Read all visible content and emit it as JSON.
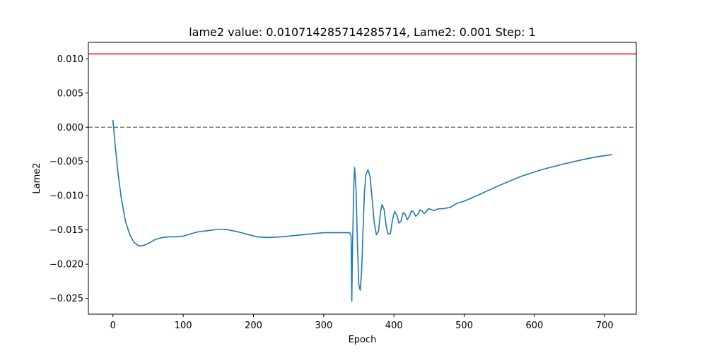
{
  "chart_data": {
    "type": "line",
    "title": "lame2 value: 0.010714285714285714, Lame2: 0.001 Step: 1",
    "xlabel": "Epoch",
    "ylabel": "Lame2",
    "xlim": [
      -35,
      745
    ],
    "ylim": [
      -0.0273,
      0.0124
    ],
    "xticks": [
      {
        "value": 0,
        "label": "0"
      },
      {
        "value": 100,
        "label": "100"
      },
      {
        "value": 200,
        "label": "200"
      },
      {
        "value": 300,
        "label": "300"
      },
      {
        "value": 400,
        "label": "400"
      },
      {
        "value": 500,
        "label": "500"
      },
      {
        "value": 600,
        "label": "600"
      },
      {
        "value": 700,
        "label": "700"
      }
    ],
    "yticks": [
      {
        "value": 0.01,
        "label": "0.010"
      },
      {
        "value": 0.005,
        "label": "0.005"
      },
      {
        "value": 0.0,
        "label": "0.000"
      },
      {
        "value": -0.005,
        "label": "−0.005"
      },
      {
        "value": -0.01,
        "label": "−0.010"
      },
      {
        "value": -0.015,
        "label": "−0.015"
      },
      {
        "value": -0.02,
        "label": "−0.020"
      },
      {
        "value": -0.025,
        "label": "−0.025"
      }
    ],
    "grid": false,
    "legend": "none",
    "reference_lines": [
      {
        "kind": "horizontal",
        "y": 0.010714285714285714,
        "color": "#ff0000",
        "style": "solid"
      },
      {
        "kind": "horizontal",
        "y": 0.0,
        "color": "#808080",
        "style": "dashed"
      }
    ],
    "series": [
      {
        "color": "#1f77b4",
        "points": [
          [
            0,
            0.001
          ],
          [
            3,
            -0.0025
          ],
          [
            7,
            -0.0065
          ],
          [
            12,
            -0.0105
          ],
          [
            18,
            -0.0138
          ],
          [
            24,
            -0.0157
          ],
          [
            30,
            -0.0168
          ],
          [
            36,
            -0.0173
          ],
          [
            42,
            -0.0173
          ],
          [
            50,
            -0.017
          ],
          [
            60,
            -0.0164
          ],
          [
            70,
            -0.0161
          ],
          [
            80,
            -0.016
          ],
          [
            90,
            -0.016
          ],
          [
            100,
            -0.0159
          ],
          [
            110,
            -0.0156
          ],
          [
            120,
            -0.0153
          ],
          [
            135,
            -0.0151
          ],
          [
            150,
            -0.0149
          ],
          [
            160,
            -0.0149
          ],
          [
            175,
            -0.0152
          ],
          [
            190,
            -0.0156
          ],
          [
            205,
            -0.016
          ],
          [
            220,
            -0.0161
          ],
          [
            240,
            -0.016
          ],
          [
            260,
            -0.0158
          ],
          [
            280,
            -0.0156
          ],
          [
            300,
            -0.0154
          ],
          [
            320,
            -0.0154
          ],
          [
            337,
            -0.0154
          ],
          [
            339,
            -0.0159
          ],
          [
            340,
            -0.0254
          ],
          [
            341,
            -0.0175
          ],
          [
            343,
            -0.008
          ],
          [
            344,
            -0.0059
          ],
          [
            346,
            -0.009
          ],
          [
            348,
            -0.017
          ],
          [
            350,
            -0.023
          ],
          [
            352,
            -0.0238
          ],
          [
            354,
            -0.021
          ],
          [
            356,
            -0.015
          ],
          [
            358,
            -0.0095
          ],
          [
            360,
            -0.0069
          ],
          [
            363,
            -0.0062
          ],
          [
            366,
            -0.0072
          ],
          [
            369,
            -0.0105
          ],
          [
            372,
            -0.014
          ],
          [
            375,
            -0.0157
          ],
          [
            378,
            -0.0152
          ],
          [
            381,
            -0.0123
          ],
          [
            383,
            -0.0113
          ],
          [
            386,
            -0.012
          ],
          [
            389,
            -0.0145
          ],
          [
            392,
            -0.0156
          ],
          [
            395,
            -0.0155
          ],
          [
            398,
            -0.0135
          ],
          [
            401,
            -0.0123
          ],
          [
            404,
            -0.0128
          ],
          [
            407,
            -0.014
          ],
          [
            410,
            -0.0137
          ],
          [
            413,
            -0.0125
          ],
          [
            416,
            -0.0127
          ],
          [
            419,
            -0.0135
          ],
          [
            422,
            -0.013
          ],
          [
            425,
            -0.0122
          ],
          [
            428,
            -0.0124
          ],
          [
            431,
            -0.013
          ],
          [
            434,
            -0.0127
          ],
          [
            437,
            -0.0121
          ],
          [
            440,
            -0.0122
          ],
          [
            443,
            -0.0126
          ],
          [
            446,
            -0.0123
          ],
          [
            449,
            -0.0119
          ],
          [
            453,
            -0.012
          ],
          [
            457,
            -0.0122
          ],
          [
            460,
            -0.012
          ],
          [
            465,
            -0.0119
          ],
          [
            470,
            -0.0119
          ],
          [
            475,
            -0.0118
          ],
          [
            480,
            -0.0117
          ],
          [
            485,
            -0.0114
          ],
          [
            490,
            -0.0111
          ],
          [
            500,
            -0.0108
          ],
          [
            520,
            -0.0099
          ],
          [
            550,
            -0.0085
          ],
          [
            580,
            -0.0072
          ],
          [
            610,
            -0.0062
          ],
          [
            640,
            -0.0054
          ],
          [
            670,
            -0.0047
          ],
          [
            690,
            -0.0043
          ],
          [
            710,
            -0.004
          ]
        ]
      }
    ]
  }
}
